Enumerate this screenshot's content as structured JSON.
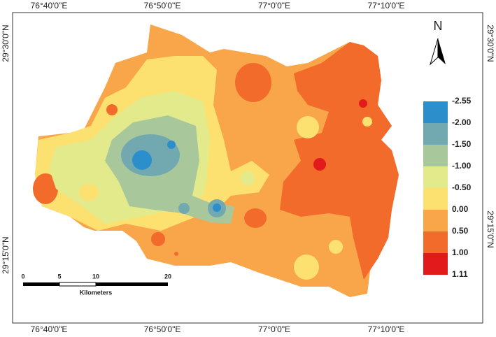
{
  "top_labels": [
    "76°40'0\"E",
    "76°50'0\"E",
    "77°0'0\"E",
    "77°10'0\"E"
  ],
  "bottom_labels": [
    "76°40'0\"E",
    "76°50'0\"E",
    "77°0'0\"E",
    "77°10'0\"E"
  ],
  "left_labels": [
    "29°30'0\"N",
    "29°15'0\"N"
  ],
  "right_labels": [
    "29°30'0\"N",
    "29°15'0\"N"
  ],
  "north": "N",
  "legend": {
    "labels": [
      "-2.55",
      "-2.00",
      "-1.50",
      "-1.00",
      "-0.50",
      "0.00",
      "0.50",
      "1.00",
      "1.11"
    ],
    "colors": [
      "#2c8fcc",
      "#72a9b1",
      "#a8c79b",
      "#e2ea8c",
      "#fce170",
      "#f9a64a",
      "#f36b2b",
      "#e31a1c"
    ]
  },
  "scale_bar": {
    "ticks": [
      "0",
      "5",
      "10",
      "20"
    ],
    "unit": "Kilometers"
  }
}
